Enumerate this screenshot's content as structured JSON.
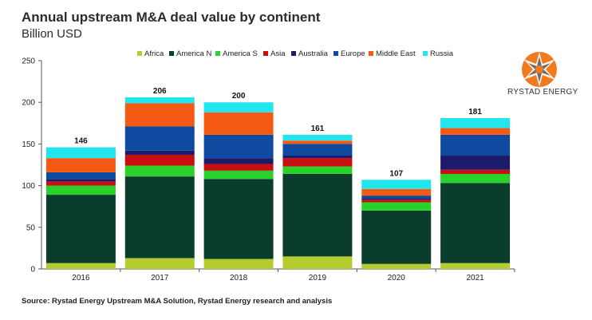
{
  "header": {
    "title": "Annual upstream M&A deal value by continent",
    "subtitle": "Billion USD"
  },
  "logo": {
    "text": "RYSTAD ENERGY",
    "icon": "rystad-logo-icon"
  },
  "footer": {
    "source": "Source: Rystad Energy Upstream M&A Solution,  Rystad Energy research and analysis"
  },
  "chart_data": {
    "type": "bar",
    "stacked": true,
    "categories": [
      "2016",
      "2017",
      "2018",
      "2019",
      "2020",
      "2021"
    ],
    "totals": [
      "146",
      "206",
      "200",
      "161",
      "107",
      "181"
    ],
    "ylim": [
      0,
      250
    ],
    "yticks": [
      "0",
      "50",
      "100",
      "150",
      "200",
      "250"
    ],
    "grid": false,
    "legend_position": "top",
    "series": [
      {
        "name": "Africa",
        "color": "#b5cc2e",
        "values": [
          7,
          13,
          12,
          15,
          6,
          7
        ]
      },
      {
        "name": "America N",
        "color": "#0a3d2b",
        "values": [
          82,
          98,
          96,
          99,
          64,
          96
        ]
      },
      {
        "name": "America S",
        "color": "#2bd12b",
        "values": [
          11,
          13,
          10,
          9,
          10,
          11
        ]
      },
      {
        "name": "Asia",
        "color": "#c80e0e",
        "values": [
          5,
          13,
          8,
          10,
          3,
          5
        ]
      },
      {
        "name": "Australia",
        "color": "#1c1a6b",
        "values": [
          3,
          5,
          7,
          3,
          2,
          17
        ]
      },
      {
        "name": "Europe",
        "color": "#0d4aa0",
        "values": [
          8,
          29,
          28,
          14,
          3,
          25
        ]
      },
      {
        "name": "Middle East",
        "color": "#f55a14",
        "values": [
          17,
          28,
          27,
          4,
          8,
          8
        ]
      },
      {
        "name": "Russia",
        "color": "#22e6ee",
        "values": [
          13,
          7,
          12,
          7,
          11,
          12
        ]
      }
    ]
  }
}
